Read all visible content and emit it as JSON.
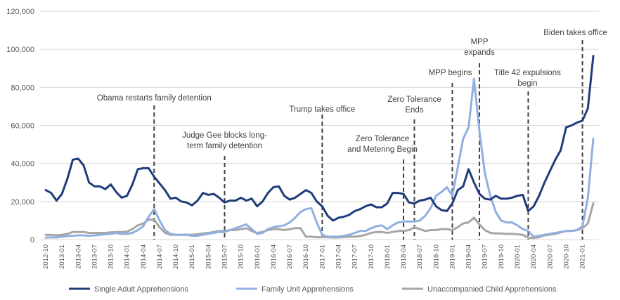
{
  "chart_data": {
    "type": "line",
    "title": "",
    "xlabel": "",
    "ylabel": "",
    "ylim": [
      0,
      120000
    ],
    "yticks": [
      "0",
      "20,000",
      "40,000",
      "60,000",
      "80,000",
      "100,000",
      "120,000"
    ],
    "grid": true,
    "legend_position": "bottom",
    "x": [
      "2012-10",
      "2012-11",
      "2012-12",
      "2013-01",
      "2013-02",
      "2013-03",
      "2013-04",
      "2013-05",
      "2013-06",
      "2013-07",
      "2013-08",
      "2013-09",
      "2013-10",
      "2013-11",
      "2013-12",
      "2014-01",
      "2014-02",
      "2014-03",
      "2014-04",
      "2014-05",
      "2014-06",
      "2014-07",
      "2014-08",
      "2014-09",
      "2014-10",
      "2014-11",
      "2014-12",
      "2015-01",
      "2015-02",
      "2015-03",
      "2015-04",
      "2015-05",
      "2015-06",
      "2015-07",
      "2015-08",
      "2015-09",
      "2015-10",
      "2015-11",
      "2015-12",
      "2016-01",
      "2016-02",
      "2016-03",
      "2016-04",
      "2016-05",
      "2016-06",
      "2016-07",
      "2016-08",
      "2016-09",
      "2016-10",
      "2016-11",
      "2016-12",
      "2017-01",
      "2017-02",
      "2017-03",
      "2017-04",
      "2017-05",
      "2017-06",
      "2017-07",
      "2017-08",
      "2017-09",
      "2017-10",
      "2017-11",
      "2017-12",
      "2018-01",
      "2018-02",
      "2018-03",
      "2018-04",
      "2018-05",
      "2018-06",
      "2018-07",
      "2018-08",
      "2018-09",
      "2018-10",
      "2018-11",
      "2018-12",
      "2019-01",
      "2019-02",
      "2019-03",
      "2019-04",
      "2019-05",
      "2019-06",
      "2019-07",
      "2019-08",
      "2019-09",
      "2019-10",
      "2019-11",
      "2019-12",
      "2020-01",
      "2020-02",
      "2020-03",
      "2020-04",
      "2020-05",
      "2020-06",
      "2020-07",
      "2020-08",
      "2020-09",
      "2020-10",
      "2020-11",
      "2020-12",
      "2021-01",
      "2021-02",
      "2021-03"
    ],
    "x_tick_labels": [
      "2012-10",
      "2013-01",
      "2013-04",
      "2013-07",
      "2013-10",
      "2014-01",
      "2014-04",
      "2014-07",
      "2014-10",
      "2015-01",
      "2015-04",
      "2015-07",
      "2015-10",
      "2016-01",
      "2016-04",
      "2016-07",
      "2016-10",
      "2017-01",
      "2017-04",
      "2017-07",
      "2017-10",
      "2018-01",
      "2018-04",
      "2018-07",
      "2018-10",
      "2019-01",
      "2019-04",
      "2019-07",
      "2019-10",
      "2020-01",
      "2020-04",
      "2020-07",
      "2020-10",
      "2021-01"
    ],
    "series": [
      {
        "name": "Single Adult Apprehensions",
        "color": "#1f3d7a",
        "values": [
          26000,
          24500,
          20500,
          24000,
          32000,
          42000,
          42500,
          39000,
          30000,
          28000,
          28000,
          26500,
          29000,
          25000,
          22000,
          23000,
          29000,
          37000,
          37500,
          37500,
          33000,
          29500,
          26000,
          21500,
          22000,
          20000,
          19500,
          18000,
          20500,
          24500,
          23500,
          24000,
          22000,
          19500,
          20500,
          20500,
          22000,
          20500,
          21500,
          17500,
          20000,
          24500,
          27500,
          28000,
          23000,
          21000,
          22000,
          24000,
          26000,
          24500,
          20000,
          17500,
          12500,
          10000,
          11500,
          12000,
          13000,
          15000,
          16000,
          17500,
          18500,
          17000,
          17000,
          19000,
          24500,
          24500,
          24000,
          19500,
          19000,
          20500,
          21000,
          22000,
          17500,
          15500,
          15000,
          19000,
          26000,
          28000,
          37000,
          30000,
          24000,
          21500,
          21000,
          23000,
          21500,
          21500,
          22000,
          23000,
          23500,
          15000,
          17500,
          23000,
          30000,
          36000,
          42000,
          47000,
          59000,
          60000,
          61500,
          62500,
          69000,
          96500
        ]
      },
      {
        "name": "Family Unit Apprehensions",
        "color": "#8fb0e0",
        "values": [
          1000,
          1200,
          1100,
          1500,
          1800,
          2000,
          2200,
          2200,
          2000,
          2200,
          2500,
          2800,
          3000,
          3500,
          3000,
          3000,
          3500,
          5000,
          7000,
          12000,
          16000,
          10000,
          5000,
          3000,
          2500,
          2500,
          2500,
          2000,
          2000,
          2500,
          3000,
          3500,
          4000,
          4000,
          5000,
          6000,
          7000,
          8000,
          5500,
          3000,
          3500,
          5500,
          6500,
          7000,
          7500,
          9000,
          11500,
          14500,
          16000,
          16500,
          9000,
          2500,
          1500,
          1500,
          1500,
          2000,
          2500,
          3500,
          4500,
          4500,
          6000,
          7000,
          7500,
          5500,
          7500,
          9000,
          9500,
          9500,
          9500,
          10000,
          12500,
          16500,
          23000,
          25000,
          27500,
          23000,
          38000,
          53000,
          59000,
          84500,
          57000,
          35000,
          23000,
          14500,
          10000,
          9000,
          9000,
          7500,
          5500,
          4500,
          1500,
          2000,
          2500,
          3000,
          3500,
          4000,
          4500,
          4500,
          5000,
          7000,
          22000,
          53000
        ]
      },
      {
        "name": "Unaccompanied Child Apprehensions",
        "color": "#a6a6a6",
        "values": [
          2500,
          2500,
          2200,
          2500,
          3000,
          4000,
          4000,
          4000,
          3500,
          3500,
          3500,
          3500,
          3800,
          4000,
          4000,
          4200,
          5500,
          7500,
          8500,
          10500,
          10500,
          6500,
          3500,
          2500,
          2500,
          2500,
          2600,
          2500,
          2800,
          3200,
          3500,
          4000,
          4500,
          4500,
          5000,
          5000,
          5500,
          6000,
          4500,
          3500,
          4000,
          5000,
          5500,
          5500,
          5000,
          5500,
          6000,
          6000,
          1500,
          1500,
          1200,
          1300,
          1200,
          1100,
          1100,
          1300,
          1500,
          1600,
          1800,
          2500,
          3500,
          4000,
          4000,
          3500,
          4000,
          4500,
          4500,
          5000,
          6500,
          5500,
          4500,
          5000,
          5000,
          5500,
          5500,
          5000,
          6500,
          8500,
          9000,
          11500,
          8000,
          5000,
          3500,
          3200,
          3200,
          3000,
          3000,
          2800,
          2500,
          1000,
          800,
          1300,
          2200,
          2600,
          3000,
          3800,
          4500,
          4500,
          5000,
          6000,
          8500,
          19000
        ]
      }
    ],
    "annotations": [
      {
        "x": "2014-06",
        "lines": [
          "Obama restarts family detention"
        ]
      },
      {
        "x": "2015-07",
        "lines": [
          "Judge Gee blocks long-",
          "term family detention"
        ]
      },
      {
        "x": "2017-01",
        "lines": [
          "Trump takes office"
        ]
      },
      {
        "x": "2018-04",
        "lines": [
          "Zero Tolerance",
          "and Metering Begin"
        ]
      },
      {
        "x": "2018-06",
        "lines": [
          "Zero Tolerance",
          "Ends"
        ]
      },
      {
        "x": "2019-01",
        "lines": [
          "MPP begins"
        ]
      },
      {
        "x": "2019-06",
        "lines": [
          "MPP",
          "expands"
        ]
      },
      {
        "x": "2020-03",
        "lines": [
          "Title 42 expulsions",
          "begin"
        ]
      },
      {
        "x": "2021-01",
        "lines": [
          "Biden takes office"
        ]
      }
    ]
  }
}
